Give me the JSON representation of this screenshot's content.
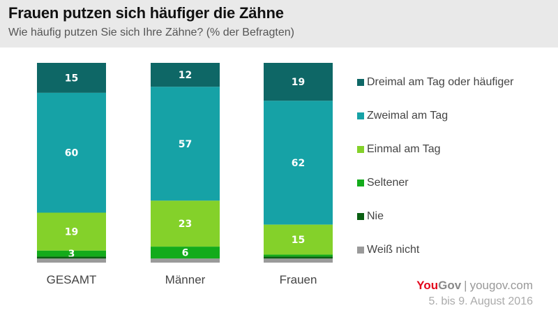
{
  "header": {
    "title": "Frauen putzen sich häufiger die Zähne",
    "subtitle": "Wie häufig putzen Sie sich Ihre Zähne? (% der Befragten)"
  },
  "footer": {
    "brand_you": "You",
    "brand_gov": "Gov",
    "separator": "|",
    "site": "yougov.com",
    "date": "5. bis 9. August 2016"
  },
  "colors": {
    "dreimal": "#0e6766",
    "zweimal": "#16a2a6",
    "einmal": "#84d12a",
    "seltener": "#13ab1b",
    "nie": "#0a5f12",
    "weiss_nicht": "#9a9a9a",
    "brand_red": "#e3051b"
  },
  "chart_data": {
    "type": "bar",
    "stacked": true,
    "title": "Frauen putzen sich häufiger die Zähne",
    "subtitle": "Wie häufig putzen Sie sich Ihre Zähne? (% der Befragten)",
    "xlabel": "",
    "ylabel": "% der Befragten",
    "ylim": [
      0,
      100
    ],
    "grid": false,
    "legend_position": "right",
    "categories": [
      "GESAMT",
      "Männer",
      "Frauen"
    ],
    "series": [
      {
        "name": "Dreimal am Tag oder häufiger",
        "color": "#0e6766",
        "values": [
          15,
          12,
          19
        ],
        "labels": [
          "15",
          "12",
          "19"
        ]
      },
      {
        "name": "Zweimal am Tag",
        "color": "#16a2a6",
        "values": [
          60,
          57,
          62
        ],
        "labels": [
          "60",
          "57",
          "62"
        ]
      },
      {
        "name": "Einmal am Tag",
        "color": "#84d12a",
        "values": [
          19,
          23,
          15
        ],
        "labels": [
          "19",
          "23",
          "15"
        ]
      },
      {
        "name": "Seltener",
        "color": "#13ab1b",
        "values": [
          3,
          6,
          1
        ],
        "labels": [
          "3",
          "6",
          ""
        ]
      },
      {
        "name": "Nie",
        "color": "#0a5f12",
        "values": [
          1,
          0,
          1
        ],
        "labels": [
          "",
          "",
          ""
        ]
      },
      {
        "name": "Weiß nicht",
        "color": "#9a9a9a",
        "values": [
          2,
          2,
          2
        ],
        "labels": [
          "",
          "",
          ""
        ]
      }
    ]
  }
}
